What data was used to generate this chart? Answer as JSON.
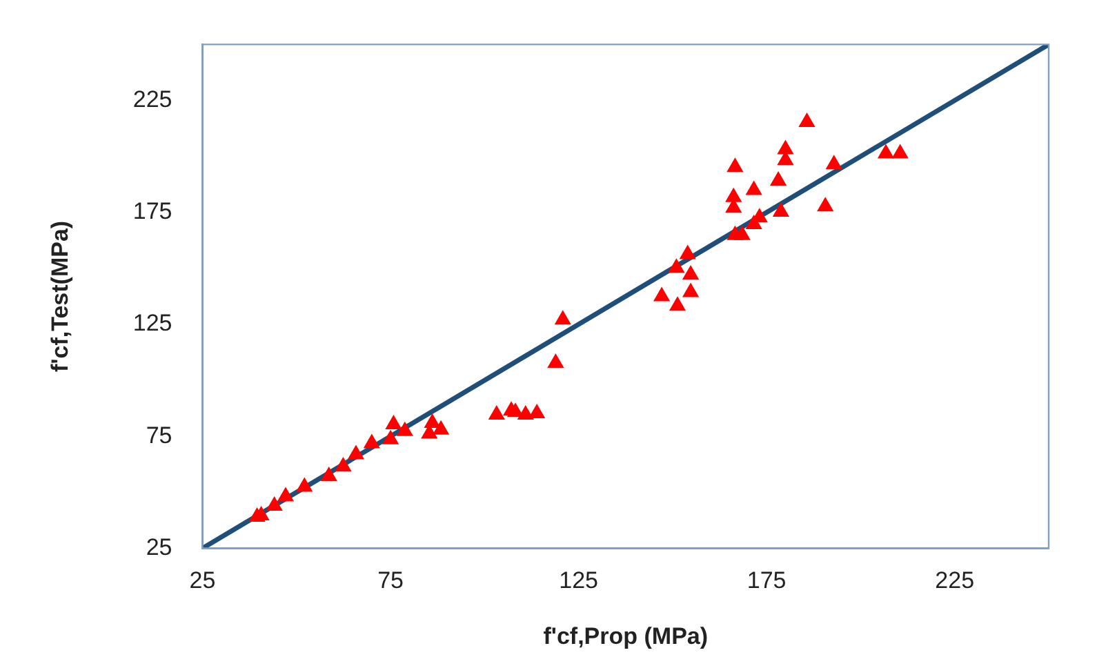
{
  "chart_data": {
    "type": "scatter",
    "xlabel": "f'cf,Prop (MPa)",
    "ylabel": "f'cf,Test(MPa)",
    "xlim": [
      25,
      250
    ],
    "ylim": [
      25,
      250
    ],
    "xticks": [
      25,
      75,
      125,
      175,
      225
    ],
    "yticks": [
      25,
      75,
      125,
      175,
      225
    ],
    "grid": false,
    "legend": false,
    "series": [
      {
        "type": "scatter",
        "color": "#ff0000",
        "marker": "triangle",
        "x": [
          39.5,
          40.6,
          44.1,
          47.1,
          52.1,
          58.6,
          62.4,
          65.8,
          70.0,
          75.0,
          75.8,
          78.8,
          85.3,
          86.1,
          88.4,
          103.2,
          107.1,
          108.2,
          110.9,
          113.9,
          118.9,
          120.8,
          147.1,
          151.3,
          151.0,
          154.8,
          154.8,
          154.0,
          166.6,
          168.5,
          166.2,
          166.2,
          166.6,
          171.6,
          173.1,
          171.6,
          178.1,
          178.8,
          180.0,
          180.0,
          185.7,
          190.6,
          192.9,
          206.7,
          210.5
        ],
        "values": [
          39.0,
          39.6,
          43.9,
          48.1,
          52.4,
          57.2,
          61.5,
          66.9,
          71.8,
          73.6,
          80.3,
          77.3,
          76.1,
          80.9,
          77.9,
          84.6,
          86.4,
          85.8,
          84.6,
          85.2,
          107.7,
          127.1,
          137.5,
          133.2,
          150.2,
          147.2,
          139.3,
          156.3,
          164.8,
          164.8,
          177.0,
          181.8,
          195.2,
          169.7,
          172.7,
          184.9,
          189.1,
          175.2,
          203.1,
          198.3,
          215.3,
          177.6,
          196.4,
          201.3,
          201.3
        ]
      },
      {
        "type": "line",
        "color": "#1f4e79",
        "marker": "none",
        "line_style": "solid",
        "x": [
          25,
          250
        ],
        "values": [
          25,
          250
        ]
      }
    ]
  }
}
